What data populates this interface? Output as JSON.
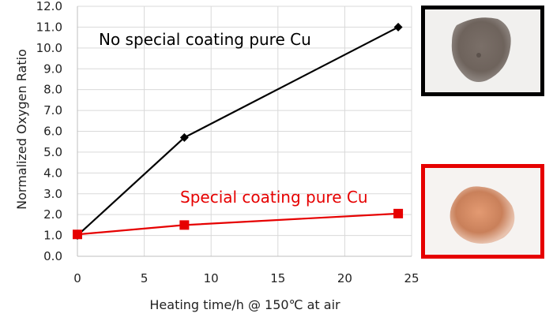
{
  "chart_data": {
    "type": "line",
    "xlabel": "Heating time/h @ 150℃ at air",
    "ylabel": "Normalized Oxygen Ratio",
    "xlim": [
      0,
      25
    ],
    "ylim": [
      0,
      12
    ],
    "x_ticks": [
      "0",
      "5",
      "10",
      "15",
      "20",
      "25"
    ],
    "y_ticks": [
      "0.0",
      "1.0",
      "2.0",
      "3.0",
      "4.0",
      "5.0",
      "6.0",
      "7.0",
      "8.0",
      "9.0",
      "10.0",
      "11.0",
      "12.0"
    ],
    "grid": true,
    "series": [
      {
        "name": "No special coating pure Cu",
        "color": "#000000",
        "marker": "diamond",
        "x": [
          0,
          8,
          24
        ],
        "y": [
          1.0,
          5.7,
          11.0
        ]
      },
      {
        "name": "Special coating pure Cu",
        "color": "#e60000",
        "marker": "square",
        "x": [
          0,
          8,
          24
        ],
        "y": [
          1.05,
          1.5,
          2.05
        ]
      }
    ]
  },
  "photos": {
    "top": {
      "frame_color": "#000000",
      "powder_color": "#6e635c"
    },
    "bottom": {
      "frame_color": "#e60000",
      "powder_color": "#c9805a"
    }
  }
}
